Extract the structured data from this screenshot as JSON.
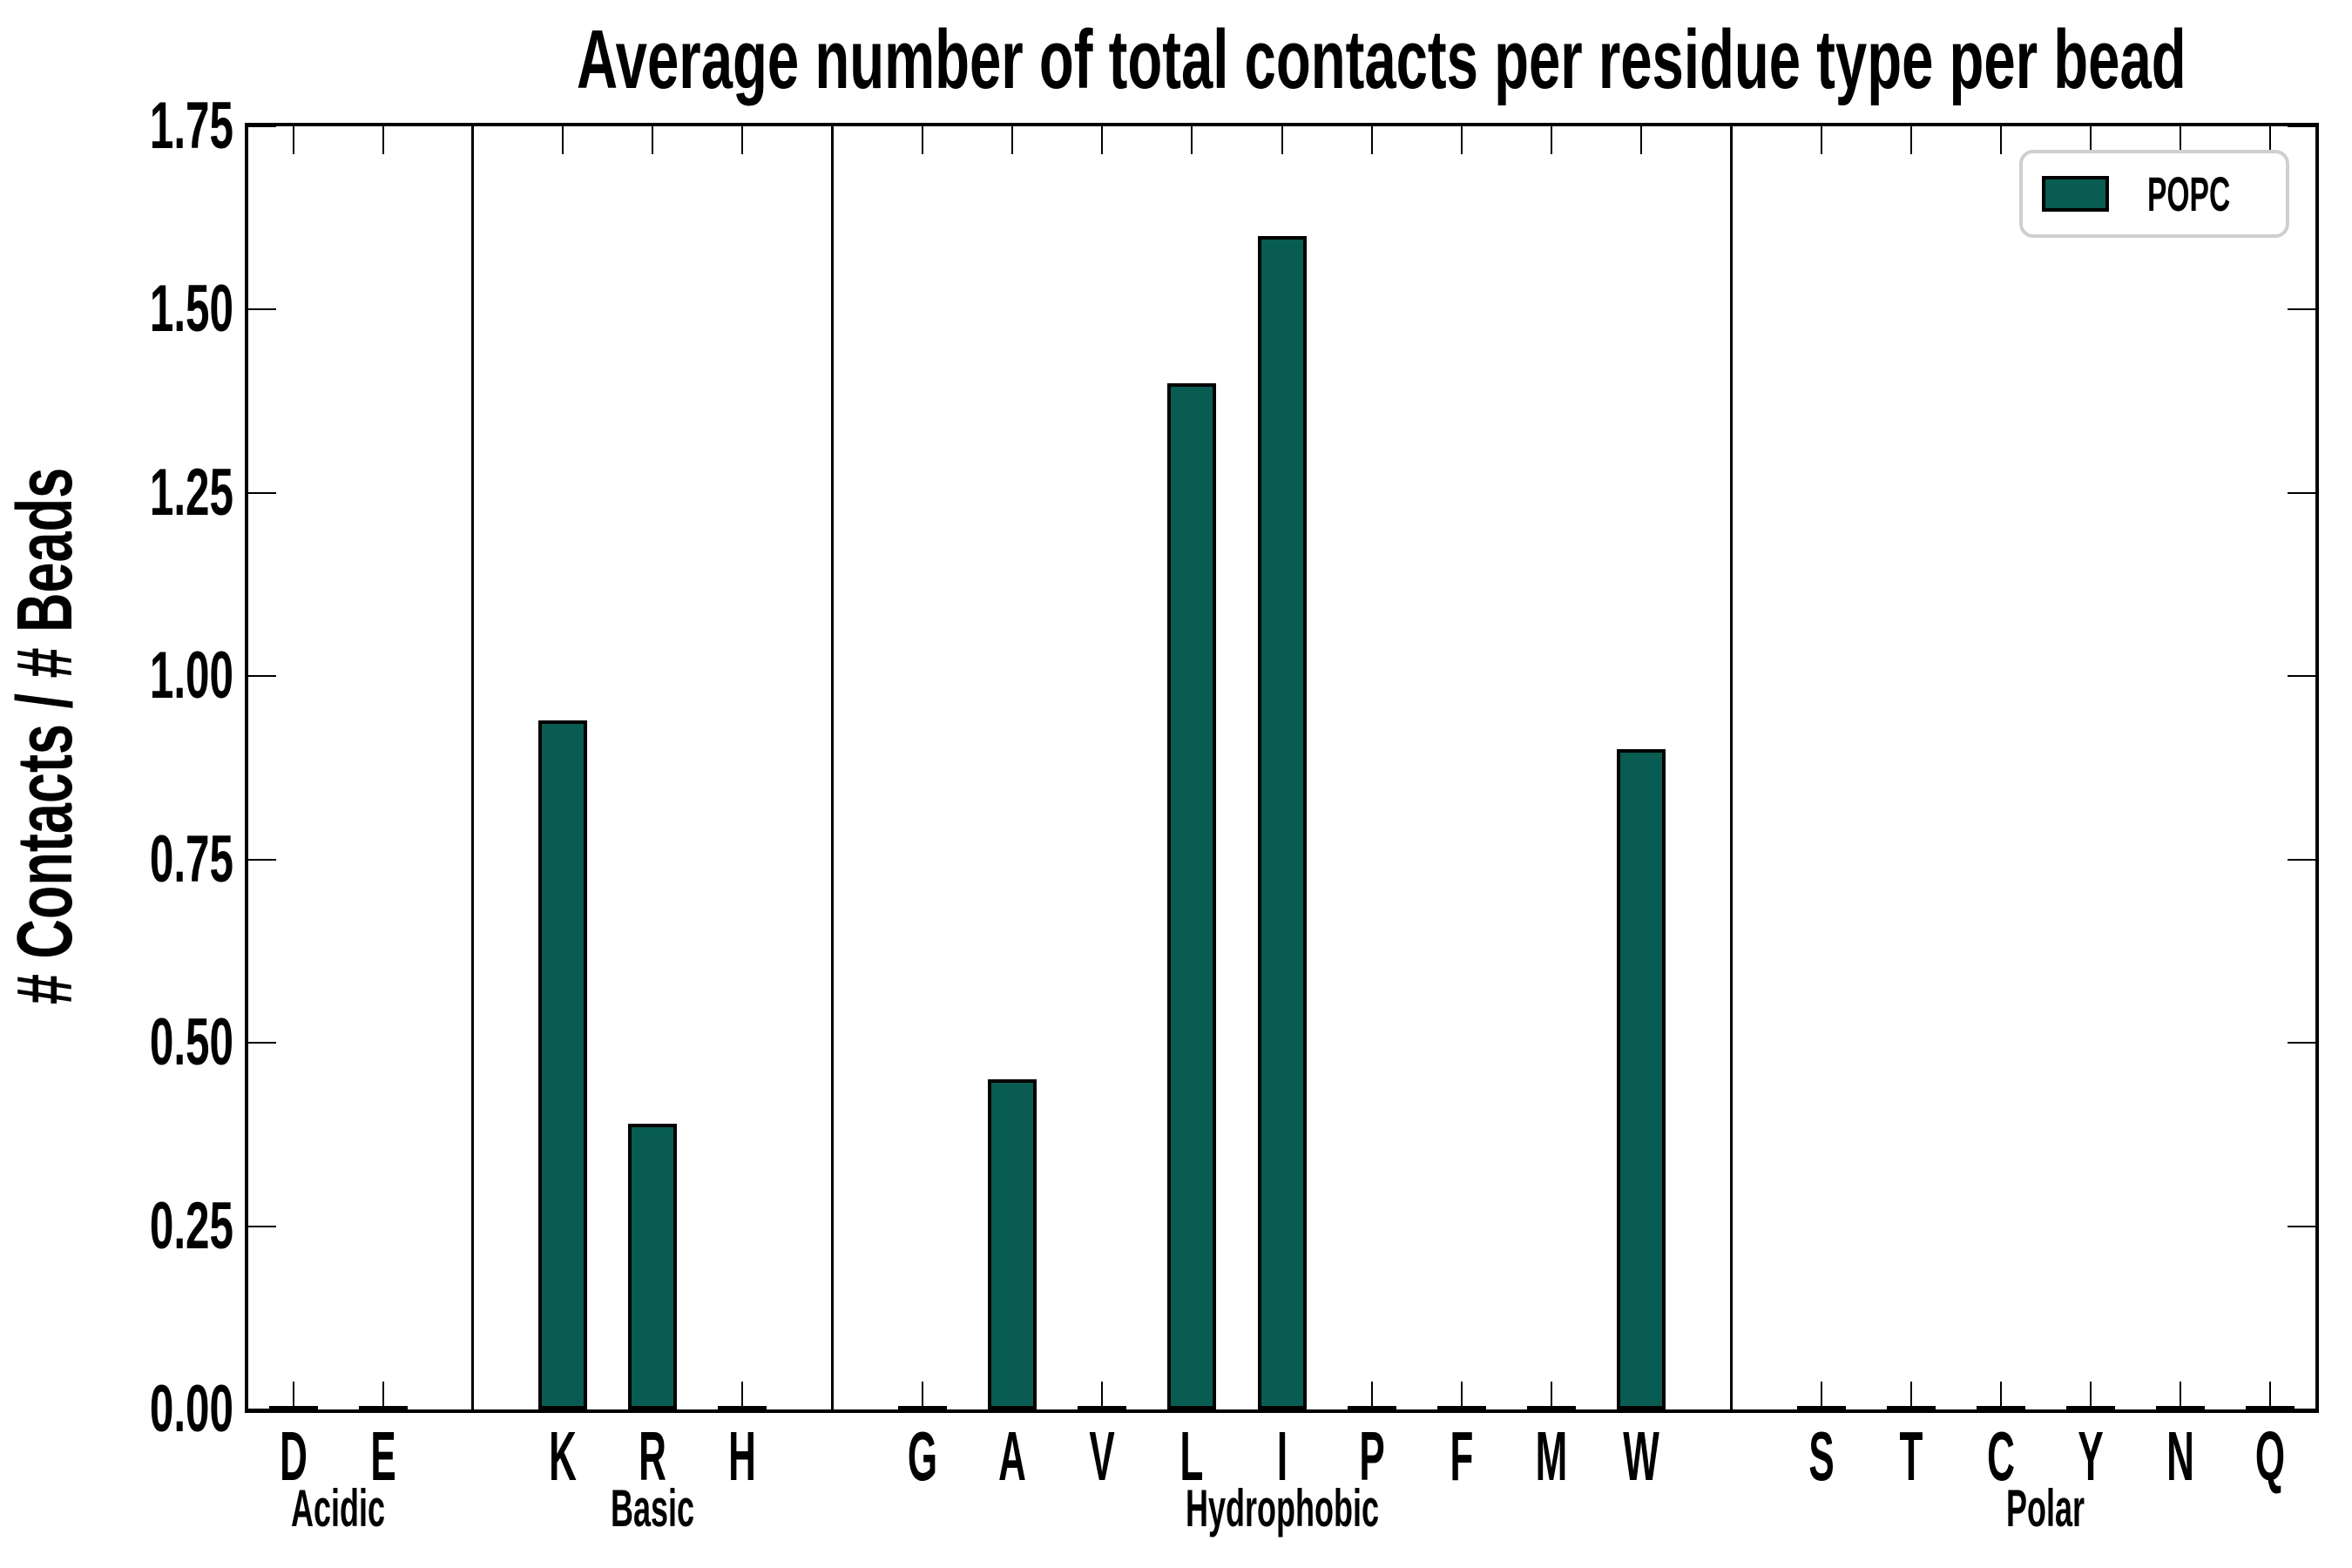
{
  "chart_data": {
    "type": "bar",
    "title": "Average number of total contacts per residue type per bead",
    "ylabel": "# Contacts / # Beads",
    "xlabel": "",
    "ylim": [
      0,
      1.75
    ],
    "yticks": [
      "0.00",
      "0.25",
      "0.50",
      "0.75",
      "1.00",
      "1.25",
      "1.50",
      "1.75"
    ],
    "grid": false,
    "bar_color": "#085C51",
    "bar_edge_color": "#000000",
    "legend": {
      "position": "upper right",
      "entries": [
        {
          "label": "POPC",
          "color": "#085C51"
        }
      ]
    },
    "groups": [
      {
        "label": "Acidic",
        "residues": [
          "D",
          "E"
        ],
        "values": [
          0,
          0
        ]
      },
      {
        "label": "Basic",
        "residues": [
          "K",
          "R",
          "H"
        ],
        "values": [
          0.94,
          0.39,
          0
        ]
      },
      {
        "label": "Hydrophobic",
        "residues": [
          "G",
          "A",
          "V",
          "L",
          "I",
          "P",
          "F",
          "M",
          "W"
        ],
        "values": [
          0,
          0.45,
          0,
          1.4,
          1.6,
          0,
          0,
          0,
          0.9
        ]
      },
      {
        "label": "Polar",
        "residues": [
          "S",
          "T",
          "C",
          "Y",
          "N",
          "Q"
        ],
        "values": [
          0,
          0,
          0,
          0,
          0,
          0
        ]
      }
    ]
  }
}
